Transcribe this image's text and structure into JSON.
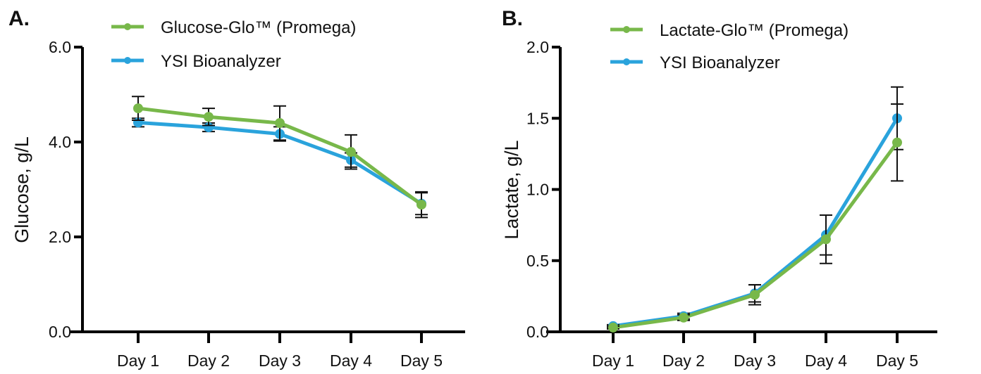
{
  "colors": {
    "green": "#78b84a",
    "blue": "#2aa3dc",
    "axis": "#000000"
  },
  "chart_data": [
    {
      "panel_label": "A.",
      "type": "line",
      "ylabel": "Glucose, g/L",
      "xlabel": "",
      "categories": [
        "Day 1",
        "Day 2",
        "Day 3",
        "Day 4",
        "Day 5"
      ],
      "ylim": [
        0,
        6
      ],
      "yticks": [
        "0.0",
        "2.0",
        "4.0",
        "6.0"
      ],
      "ytick_values": [
        0,
        2,
        4,
        6
      ],
      "grid": false,
      "legend_position": "top",
      "series": [
        {
          "name": "Glucose-Glo™ (Promega)",
          "color": "#78b84a",
          "values": [
            4.71,
            4.53,
            4.4,
            3.79,
            2.68
          ],
          "error": [
            0.25,
            0.18,
            0.36,
            0.36,
            0.27
          ]
        },
        {
          "name": "YSI Bioanalyzer",
          "color": "#2aa3dc",
          "values": [
            4.41,
            4.31,
            4.17,
            3.62,
            2.7
          ],
          "error": [
            0.09,
            0.09,
            0.15,
            0.15,
            0.23
          ]
        }
      ]
    },
    {
      "panel_label": "B.",
      "type": "line",
      "ylabel": "Lactate, g/L",
      "xlabel": "",
      "categories": [
        "Day 1",
        "Day 2",
        "Day 3",
        "Day 4",
        "Day 5"
      ],
      "ylim": [
        0,
        2
      ],
      "yticks": [
        "0.0",
        "0.5",
        "1.0",
        "1.5",
        "2.0"
      ],
      "ytick_values": [
        0,
        0.5,
        1,
        1.5,
        2
      ],
      "grid": false,
      "legend_position": "top",
      "series": [
        {
          "name": "Lactate-Glo™ (Promega)",
          "color": "#78b84a",
          "values": [
            0.03,
            0.1,
            0.26,
            0.65,
            1.33
          ],
          "error": [
            0.01,
            0.02,
            0.07,
            0.17,
            0.27
          ]
        },
        {
          "name": "YSI Bioanalyzer",
          "color": "#2aa3dc",
          "values": [
            0.04,
            0.11,
            0.27,
            0.68,
            1.5
          ],
          "error": [
            0.01,
            0.02,
            0.06,
            0.14,
            0.22
          ]
        }
      ]
    }
  ]
}
